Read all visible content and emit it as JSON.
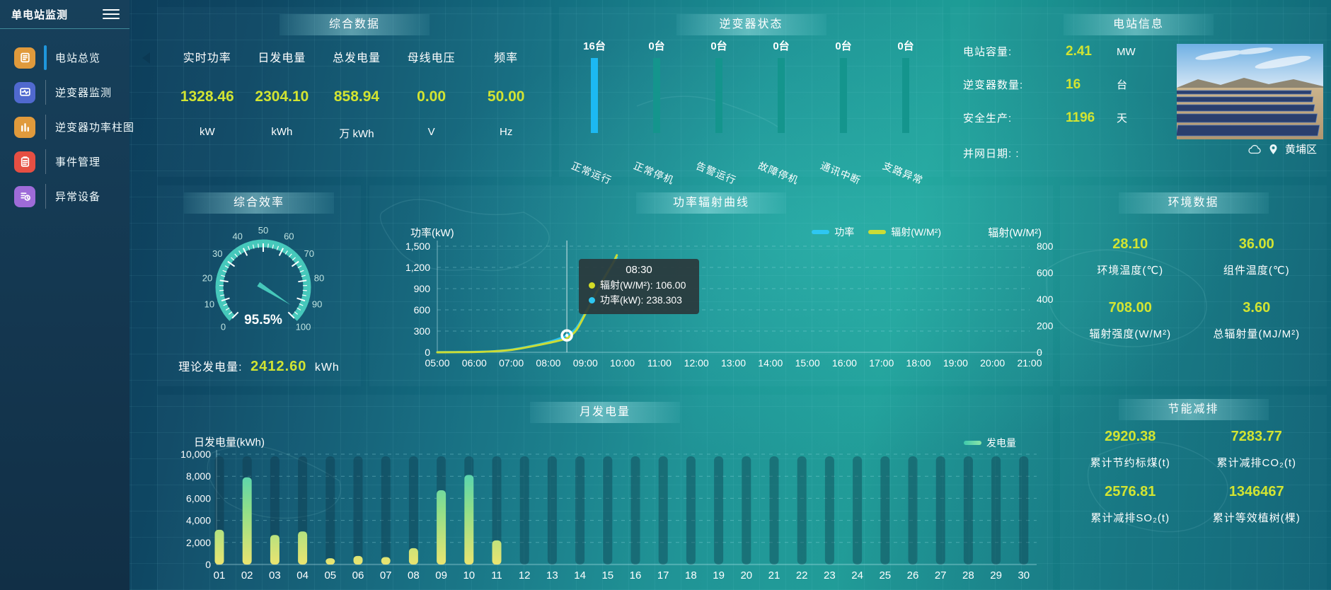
{
  "app": {
    "title": "单电站监测"
  },
  "sidebar": {
    "items": [
      {
        "label": "电站总览",
        "color": "#e09a3c",
        "icon": "overview",
        "active": true
      },
      {
        "label": "逆变器监测",
        "color": "#5069cf",
        "icon": "monitor",
        "active": false
      },
      {
        "label": "逆变器功率柱图",
        "color": "#e09a3c",
        "icon": "barchart",
        "active": false
      },
      {
        "label": "事件管理",
        "color": "#e64f43",
        "icon": "clipboard",
        "active": false
      },
      {
        "label": "异常设备",
        "color": "#9e6bd8",
        "icon": "listclock",
        "active": false
      }
    ]
  },
  "panels": {
    "summary": {
      "title": "综合数据",
      "metrics": [
        {
          "label": "实时功率",
          "value": "1328.46",
          "unit": "kW"
        },
        {
          "label": "日发电量",
          "value": "2304.10",
          "unit": "kWh"
        },
        {
          "label": "总发电量",
          "value": "858.94",
          "unit": "万 kWh"
        },
        {
          "label": "母线电压",
          "value": "0.00",
          "unit": "V"
        },
        {
          "label": "频率",
          "value": "50.00",
          "unit": "Hz"
        }
      ]
    },
    "inverter_status": {
      "title": "逆变器状态",
      "highlight_color": "#1cb9f2",
      "normal_color": "#14958d",
      "items": [
        {
          "count": "16台",
          "label": "正常运行",
          "highlight": true
        },
        {
          "count": "0台",
          "label": "正常停机",
          "highlight": false
        },
        {
          "count": "0台",
          "label": "告警运行",
          "highlight": false
        },
        {
          "count": "0台",
          "label": "故障停机",
          "highlight": false
        },
        {
          "count": "0台",
          "label": "通讯中断",
          "highlight": false
        },
        {
          "count": "0台",
          "label": "支路异常",
          "highlight": false
        }
      ]
    },
    "station_info": {
      "title": "电站信息",
      "rows": [
        {
          "label": "电站容量:",
          "value": "2.41",
          "unit": "MW"
        },
        {
          "label": "逆变器数量:",
          "value": "16",
          "unit": "台"
        },
        {
          "label": "安全生产:",
          "value": "1196",
          "unit": "天"
        }
      ],
      "grid_date_label": "并网日期:  :",
      "location": "黄埔区"
    },
    "efficiency": {
      "title": "综合效率",
      "gauge": {
        "min": 0,
        "max": 100,
        "value": 95.5,
        "display": "95.5%",
        "color": "#46c8bb"
      },
      "theory_label": "理论发电量:",
      "theory_value": "2412.60",
      "theory_unit": "kWh"
    },
    "env_data": {
      "title": "环境数据",
      "metrics": [
        {
          "value": "28.10",
          "label": "环境温度(℃)"
        },
        {
          "value": "36.00",
          "label": "组件温度(℃)"
        },
        {
          "value": "708.00",
          "label": "辐射强度(W/M²)"
        },
        {
          "value": "3.60",
          "label": "总辐射量(MJ/M²)"
        }
      ]
    },
    "savings": {
      "title": "节能减排",
      "metrics": [
        {
          "value": "2920.38",
          "label": "累计节约标煤(t)"
        },
        {
          "value": "7283.77",
          "label": "累计减排CO₂(t)"
        },
        {
          "value": "2576.81",
          "label": "累计减排SO₂(t)"
        },
        {
          "value": "1346467",
          "label": "累计等效植树(棵)"
        }
      ]
    }
  },
  "chart_data": [
    {
      "id": "power_radiation",
      "type": "line",
      "title": "功率辐射曲线",
      "x_range": [
        5,
        21
      ],
      "x_ticks": [
        "05:00",
        "06:00",
        "07:00",
        "08:00",
        "09:00",
        "10:00",
        "11:00",
        "12:00",
        "13:00",
        "14:00",
        "15:00",
        "16:00",
        "17:00",
        "18:00",
        "19:00",
        "20:00",
        "21:00"
      ],
      "left_axis": {
        "label": "功率(kW)",
        "ticks": [
          "0",
          "300",
          "600",
          "900",
          "1,200",
          "1,500"
        ],
        "max": 1500
      },
      "right_axis": {
        "label": "辐射(W/M²)",
        "ticks": [
          "0",
          "200",
          "400",
          "600",
          "800"
        ],
        "max": 800
      },
      "series": [
        {
          "name": "功率",
          "color": "#2ec7f2",
          "axis": "left",
          "points": [
            [
              5,
              2
            ],
            [
              5.5,
              3
            ],
            [
              6,
              6
            ],
            [
              6.5,
              14
            ],
            [
              7,
              38
            ],
            [
              7.5,
              85
            ],
            [
              8,
              145
            ],
            [
              8.25,
              185
            ],
            [
              8.5,
              238.3
            ],
            [
              8.75,
              340
            ],
            [
              9,
              560
            ],
            [
              9.25,
              800
            ],
            [
              9.5,
              1050
            ],
            [
              9.75,
              1260
            ],
            [
              9.85,
              1340
            ]
          ]
        },
        {
          "name": "辐射(W/M²)",
          "color": "#cbdc35",
          "axis": "right",
          "points": [
            [
              5,
              0
            ],
            [
              5.5,
              1
            ],
            [
              6,
              2
            ],
            [
              6.5,
              7
            ],
            [
              7,
              18
            ],
            [
              7.5,
              42
            ],
            [
              8,
              70
            ],
            [
              8.25,
              86
            ],
            [
              8.5,
              106
            ],
            [
              8.75,
              165
            ],
            [
              9,
              290
            ],
            [
              9.25,
              425
            ],
            [
              9.5,
              555
            ],
            [
              9.75,
              675
            ],
            [
              9.85,
              732
            ]
          ]
        }
      ],
      "crosshair_x": 8.5,
      "highlight": {
        "x": 8.5,
        "value": 238.3,
        "axis": "left"
      },
      "tooltip": {
        "time": "08:30",
        "rows": [
          {
            "color": "#d4dd26",
            "text": "辐射(W/M²): 106.00"
          },
          {
            "color": "#2ec7f2",
            "text": "功率(kW): 238.303"
          }
        ]
      },
      "legend_position": "top-right",
      "grid": true
    },
    {
      "id": "monthly_energy",
      "type": "bar",
      "title": "月发电量",
      "ylabel": "日发电量(kWh)",
      "legend": "发电量",
      "categories": [
        "01",
        "02",
        "03",
        "04",
        "05",
        "06",
        "07",
        "08",
        "09",
        "10",
        "11",
        "12",
        "13",
        "14",
        "15",
        "16",
        "17",
        "18",
        "19",
        "20",
        "21",
        "22",
        "23",
        "24",
        "25",
        "26",
        "27",
        "28",
        "29",
        "30"
      ],
      "values": [
        3150,
        7900,
        2680,
        3000,
        570,
        780,
        675,
        1480,
        6730,
        8120,
        2190,
        0,
        0,
        0,
        0,
        0,
        0,
        0,
        0,
        0,
        0,
        0,
        0,
        0,
        0,
        0,
        0,
        0,
        0,
        0
      ],
      "y_ticks": [
        "0",
        "2,000",
        "4,000",
        "6,000",
        "8,000",
        "10,000"
      ],
      "ymax": 10000,
      "bar_gradient": [
        "#eae470",
        "#8fdf8a",
        "#3ccfc4"
      ],
      "grid": true,
      "legend_position": "top-right"
    }
  ]
}
